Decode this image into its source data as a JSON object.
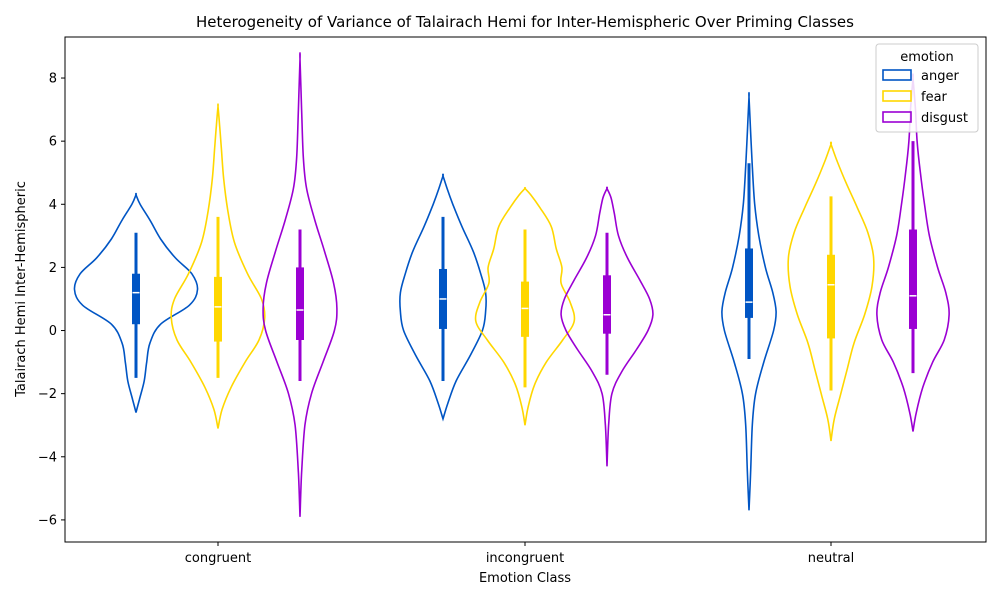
{
  "chart_data": {
    "type": "violin",
    "title": "Heterogeneity of Variance of Talairach Hemi for Inter-Hemispheric Over Priming Classes",
    "xlabel": "Emotion Class",
    "ylabel": "Talairach Hemi Inter-Hemispheric",
    "ylim": [
      -6.7,
      9.3
    ],
    "yticks": [
      -6,
      -4,
      -2,
      0,
      2,
      4,
      6,
      8
    ],
    "categories": [
      "congruent",
      "incongruent",
      "neutral"
    ],
    "legend": {
      "title": "emotion",
      "position": "top-right"
    },
    "series": [
      {
        "name": "anger",
        "color": "#0055c4",
        "stats": [
          {
            "min": -2.6,
            "max": 4.3,
            "q1": 0.2,
            "median": 1.2,
            "q3": 1.8,
            "whisker_low": -1.5,
            "whisker_high": 3.1,
            "profile": [
              [
                -2.6,
                0
              ],
              [
                -2.2,
                0.04
              ],
              [
                -1.6,
                0.1
              ],
              [
                -1.0,
                0.13
              ],
              [
                -0.4,
                0.17
              ],
              [
                0.2,
                0.3
              ],
              [
                0.8,
                0.65
              ],
              [
                1.3,
                0.75
              ],
              [
                1.8,
                0.68
              ],
              [
                2.3,
                0.48
              ],
              [
                2.9,
                0.3
              ],
              [
                3.5,
                0.17
              ],
              [
                4.0,
                0.05
              ],
              [
                4.3,
                0
              ]
            ]
          },
          {
            "min": -2.8,
            "max": 4.9,
            "q1": 0.05,
            "median": 1.0,
            "q3": 1.95,
            "whisker_low": -1.6,
            "whisker_high": 3.6,
            "profile": [
              [
                -2.8,
                0
              ],
              [
                -2.3,
                0.06
              ],
              [
                -1.6,
                0.16
              ],
              [
                -0.8,
                0.33
              ],
              [
                0.0,
                0.48
              ],
              [
                0.6,
                0.52
              ],
              [
                1.2,
                0.52
              ],
              [
                1.8,
                0.46
              ],
              [
                2.5,
                0.37
              ],
              [
                3.3,
                0.23
              ],
              [
                4.0,
                0.12
              ],
              [
                4.5,
                0.05
              ],
              [
                4.9,
                0
              ]
            ]
          },
          {
            "min": -5.7,
            "max": 7.4,
            "q1": 0.4,
            "median": 0.9,
            "q3": 2.6,
            "whisker_low": -0.9,
            "whisker_high": 5.3,
            "profile": [
              [
                -5.7,
                0
              ],
              [
                -4.5,
                0.02
              ],
              [
                -3.0,
                0.04
              ],
              [
                -2.0,
                0.08
              ],
              [
                -1.0,
                0.18
              ],
              [
                0.0,
                0.3
              ],
              [
                0.6,
                0.33
              ],
              [
                1.2,
                0.29
              ],
              [
                2.0,
                0.2
              ],
              [
                3.0,
                0.12
              ],
              [
                4.0,
                0.07
              ],
              [
                5.2,
                0.04
              ],
              [
                6.3,
                0.02
              ],
              [
                7.4,
                0
              ]
            ]
          }
        ]
      },
      {
        "name": "fear",
        "color": "#ffd700",
        "stats": [
          {
            "min": -3.1,
            "max": 7.1,
            "q1": -0.35,
            "median": 0.75,
            "q3": 1.7,
            "whisker_low": -1.5,
            "whisker_high": 3.6,
            "profile": [
              [
                -3.1,
                0
              ],
              [
                -2.5,
                0.05
              ],
              [
                -1.8,
                0.16
              ],
              [
                -1.0,
                0.33
              ],
              [
                -0.3,
                0.5
              ],
              [
                0.4,
                0.57
              ],
              [
                1.0,
                0.53
              ],
              [
                1.8,
                0.36
              ],
              [
                2.8,
                0.2
              ],
              [
                3.8,
                0.12
              ],
              [
                4.8,
                0.07
              ],
              [
                5.8,
                0.04
              ],
              [
                6.5,
                0.02
              ],
              [
                7.1,
                0
              ]
            ]
          },
          {
            "min": -3.0,
            "max": 4.5,
            "q1": -0.2,
            "median": 0.7,
            "q3": 1.55,
            "whisker_low": -1.8,
            "whisker_high": 3.2,
            "profile": [
              [
                -3.0,
                0
              ],
              [
                -2.4,
                0.04
              ],
              [
                -1.7,
                0.12
              ],
              [
                -1.0,
                0.26
              ],
              [
                -0.3,
                0.46
              ],
              [
                0.3,
                0.6
              ],
              [
                0.9,
                0.55
              ],
              [
                1.5,
                0.44
              ],
              [
                2.0,
                0.45
              ],
              [
                2.6,
                0.38
              ],
              [
                3.3,
                0.32
              ],
              [
                3.9,
                0.18
              ],
              [
                4.3,
                0.07
              ],
              [
                4.5,
                0
              ]
            ]
          },
          {
            "min": -3.5,
            "max": 5.9,
            "q1": -0.25,
            "median": 1.45,
            "q3": 2.4,
            "whisker_low": -1.9,
            "whisker_high": 4.25,
            "profile": [
              [
                -3.5,
                0
              ],
              [
                -2.8,
                0.04
              ],
              [
                -2.0,
                0.12
              ],
              [
                -1.2,
                0.2
              ],
              [
                -0.4,
                0.28
              ],
              [
                0.5,
                0.41
              ],
              [
                1.4,
                0.5
              ],
              [
                2.3,
                0.52
              ],
              [
                3.1,
                0.45
              ],
              [
                3.9,
                0.32
              ],
              [
                4.7,
                0.18
              ],
              [
                5.4,
                0.07
              ],
              [
                5.9,
                0
              ]
            ]
          }
        ]
      },
      {
        "name": "disgust",
        "color": "#9b00d3",
        "stats": [
          {
            "min": -5.9,
            "max": 8.6,
            "q1": -0.3,
            "median": 0.65,
            "q3": 2.0,
            "whisker_low": -1.6,
            "whisker_high": 3.2,
            "profile": [
              [
                -5.9,
                0
              ],
              [
                -4.5,
                0.02
              ],
              [
                -3.0,
                0.06
              ],
              [
                -2.0,
                0.14
              ],
              [
                -1.0,
                0.28
              ],
              [
                0.0,
                0.42
              ],
              [
                0.7,
                0.45
              ],
              [
                1.5,
                0.41
              ],
              [
                2.5,
                0.3
              ],
              [
                3.5,
                0.18
              ],
              [
                4.5,
                0.08
              ],
              [
                5.5,
                0.04
              ],
              [
                7.0,
                0.02
              ],
              [
                8.6,
                0
              ]
            ]
          },
          {
            "min": -4.3,
            "max": 4.5,
            "q1": -0.1,
            "median": 0.5,
            "q3": 1.75,
            "whisker_low": -1.4,
            "whisker_high": 3.1,
            "profile": [
              [
                -4.3,
                0
              ],
              [
                -3.0,
                0.02
              ],
              [
                -2.0,
                0.06
              ],
              [
                -1.3,
                0.18
              ],
              [
                -0.6,
                0.36
              ],
              [
                0.0,
                0.5
              ],
              [
                0.5,
                0.56
              ],
              [
                1.0,
                0.52
              ],
              [
                1.6,
                0.4
              ],
              [
                2.3,
                0.25
              ],
              [
                3.0,
                0.14
              ],
              [
                3.7,
                0.09
              ],
              [
                4.2,
                0.05
              ],
              [
                4.5,
                0
              ]
            ]
          },
          {
            "min": -3.2,
            "max": 8.0,
            "q1": 0.05,
            "median": 1.1,
            "q3": 3.2,
            "whisker_low": -1.35,
            "whisker_high": 6.0,
            "profile": [
              [
                -3.2,
                0
              ],
              [
                -2.6,
                0.04
              ],
              [
                -1.8,
                0.12
              ],
              [
                -1.0,
                0.24
              ],
              [
                -0.3,
                0.38
              ],
              [
                0.5,
                0.44
              ],
              [
                1.2,
                0.4
              ],
              [
                2.0,
                0.3
              ],
              [
                3.0,
                0.2
              ],
              [
                4.0,
                0.14
              ],
              [
                5.0,
                0.09
              ],
              [
                6.0,
                0.05
              ],
              [
                7.0,
                0.03
              ],
              [
                8.0,
                0
              ]
            ]
          }
        ]
      }
    ]
  }
}
